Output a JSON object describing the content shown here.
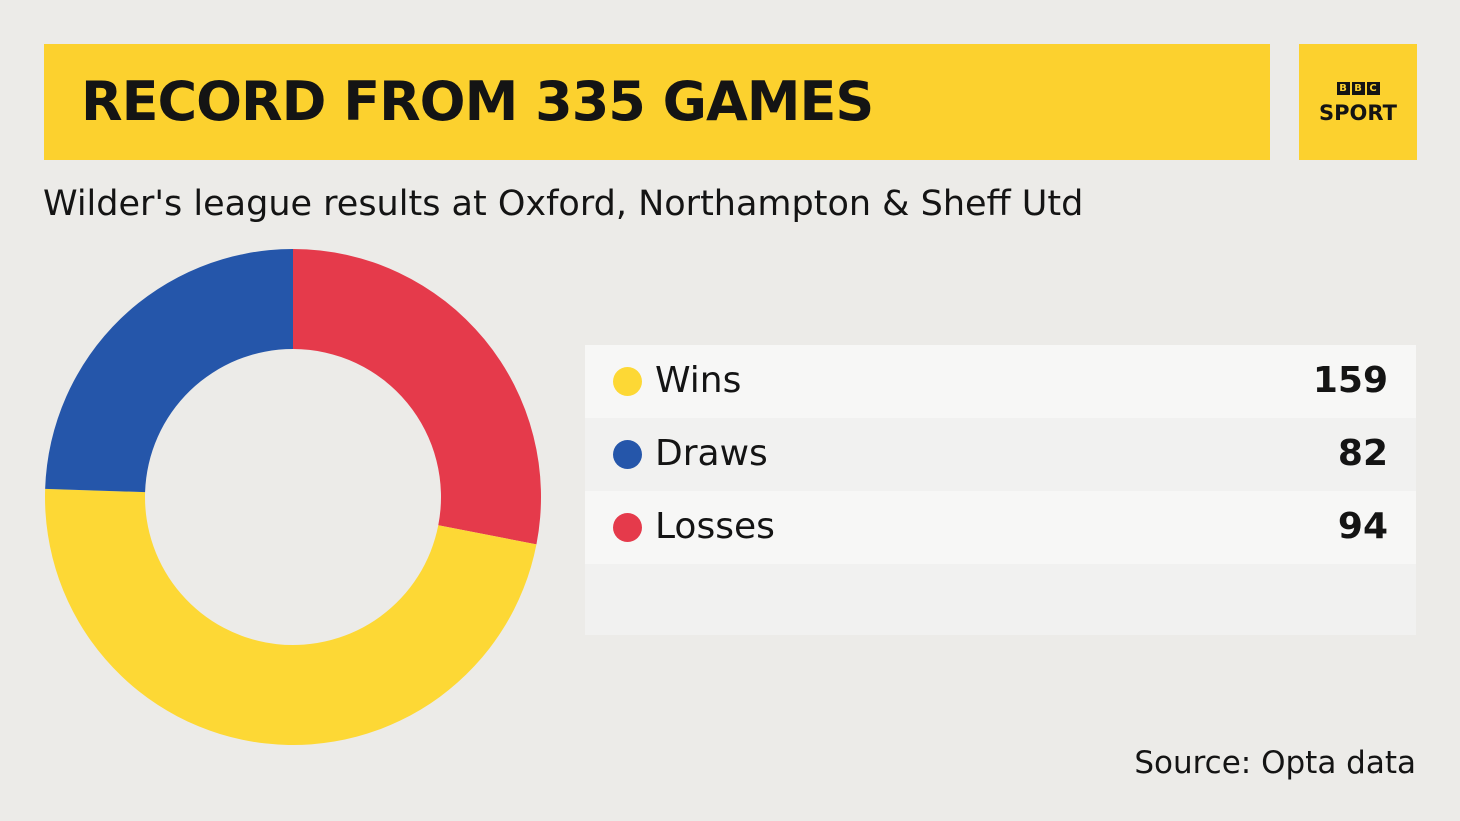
{
  "header": {
    "title": "RECORD FROM 335 GAMES",
    "logo_letters": [
      "B",
      "B",
      "C"
    ],
    "logo_word": "SPORT"
  },
  "subtitle": "Wilder's league results at Oxford, Northampton & Sheff Utd",
  "source": "Source: Opta data",
  "colors": {
    "wins": "#fdd835",
    "draws": "#2556aa",
    "losses": "#e53a4b",
    "title_bar": "#fcd12e",
    "background": "#ecebe8"
  },
  "chart_data": {
    "type": "pie",
    "style": "donut",
    "legend_placement": "right",
    "total": 335,
    "categories": [
      "Wins",
      "Draws",
      "Losses"
    ],
    "values": [
      159,
      82,
      94
    ],
    "slice_order_clockwise_from_top": [
      "Losses",
      "Wins",
      "Draws"
    ]
  }
}
